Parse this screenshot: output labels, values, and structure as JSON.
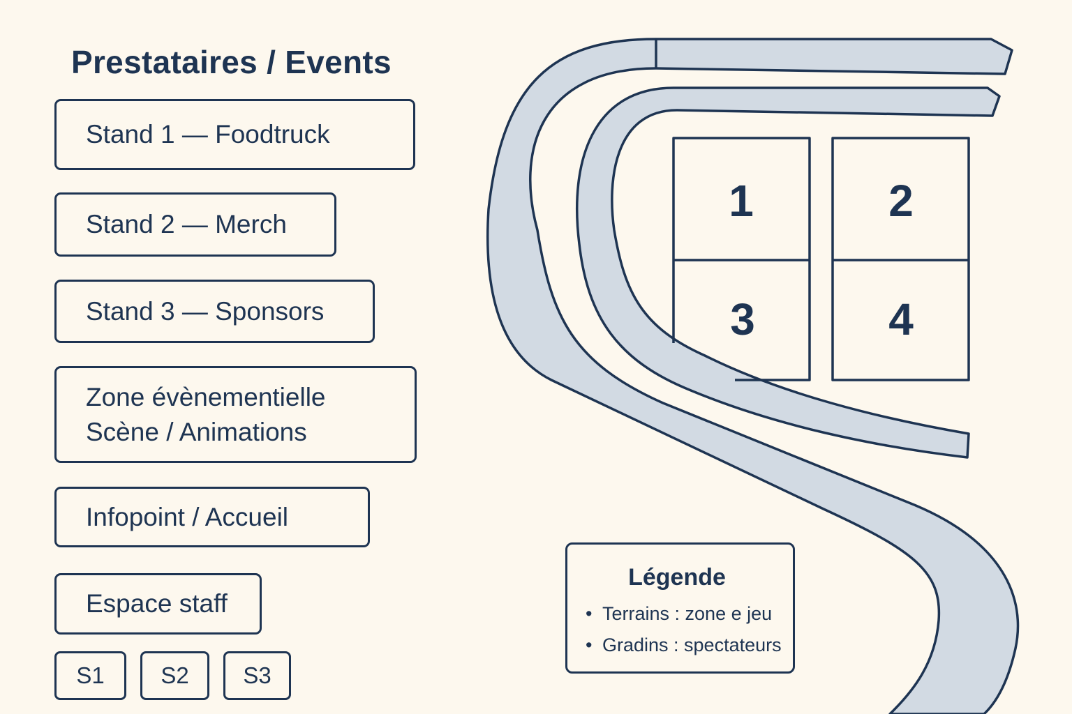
{
  "panel": {
    "title": "Prestataires / Events",
    "items": [
      {
        "lines": [
          "Stand 1 — Foodtruck"
        ]
      },
      {
        "lines": [
          "Stand 2 — Merch"
        ]
      },
      {
        "lines": [
          "Stand 3 — Sponsors"
        ]
      },
      {
        "lines": [
          "Zone évènementielle",
          "Scène / Animations"
        ]
      },
      {
        "lines": [
          "Infopoint / Accueil"
        ]
      },
      {
        "lines": [
          "Espace staff"
        ]
      }
    ],
    "small_items": [
      "S1",
      "S2",
      "S3"
    ]
  },
  "courts": [
    "1",
    "2",
    "3",
    "4"
  ],
  "legend": {
    "title": "Légende",
    "items": [
      "Terrains : zone e jeu",
      "Gradins : spectateurs"
    ]
  },
  "colors": {
    "background": "#fdf8ee",
    "ink": "#1e3452",
    "stand_fill": "#d2dae3"
  }
}
